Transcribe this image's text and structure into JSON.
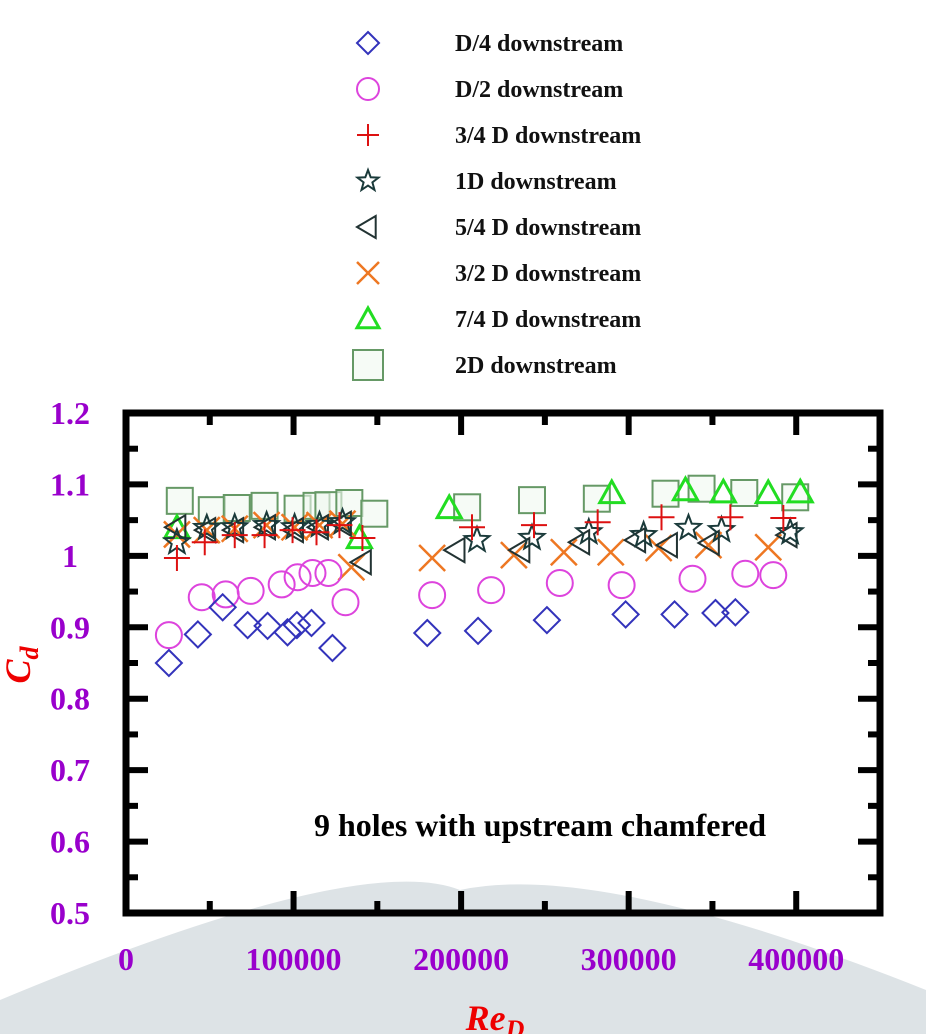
{
  "chart_data": {
    "type": "scatter",
    "title": "",
    "annotation": "9 holes with upstream chamfered",
    "xlabel": "Re",
    "xlabel_sub": "D",
    "ylabel": "C",
    "ylabel_sub": "d",
    "xlim": [
      0,
      450000
    ],
    "ylim": [
      0.5,
      1.2
    ],
    "xticks": [
      0,
      100000,
      200000,
      300000,
      400000
    ],
    "xtick_labels": [
      "0",
      "100000",
      "200000",
      "300000",
      "400000"
    ],
    "yticks": [
      0.5,
      0.6,
      0.7,
      0.8,
      0.9,
      1.0,
      1.1,
      1.2
    ],
    "ytick_labels": [
      "0.5",
      "0.6",
      "0.7",
      "0.8",
      "0.9",
      "1",
      "1.1",
      "1.2"
    ],
    "grid": false,
    "legend_position": "top (above plot)",
    "tick_label_color": "#9900cc",
    "axis_title_color": "#ee0000",
    "series": [
      {
        "name": "D/4 downstream",
        "marker": "diamond",
        "color": "#3333bb",
        "x": [
          25600,
          42900,
          57700,
          72600,
          84500,
          96400,
          102000,
          110700,
          123200,
          179800,
          210100,
          251200,
          298200,
          327400,
          351800,
          363700
        ],
        "y": [
          0.85,
          0.89,
          0.928,
          0.903,
          0.902,
          0.893,
          0.903,
          0.906,
          0.871,
          0.892,
          0.895,
          0.91,
          0.918,
          0.918,
          0.92,
          0.921
        ]
      },
      {
        "name": "D/2 downstream",
        "marker": "circle",
        "color": "#dd44dd",
        "x": [
          25600,
          45200,
          59500,
          74400,
          92900,
          102400,
          111300,
          120800,
          131000,
          182700,
          217900,
          258900,
          295800,
          338100,
          369600,
          386300
        ],
        "y": [
          0.889,
          0.942,
          0.946,
          0.951,
          0.96,
          0.97,
          0.976,
          0.976,
          0.935,
          0.945,
          0.952,
          0.962,
          0.959,
          0.968,
          0.975,
          0.973
        ]
      },
      {
        "name": "3/4 D downstream",
        "marker": "plus",
        "color": "#dd1111",
        "x": [
          30400,
          47000,
          64900,
          82700,
          99400,
          113700,
          127400,
          141100,
          206500,
          243500,
          281500,
          319600,
          360700,
          392300
        ],
        "y": [
          0.997,
          1.019,
          1.029,
          1.029,
          1.036,
          1.033,
          1.043,
          1.025,
          1.04,
          1.043,
          1.047,
          1.054,
          1.054,
          1.053
        ]
      },
      {
        "name": "1D downstream",
        "marker": "star",
        "color": "#1a3a3a",
        "x": [
          30400,
          48200,
          64900,
          83900,
          100600,
          115500,
          129200,
          209500,
          242300,
          276200,
          308900,
          335700,
          355400,
          396400
        ],
        "y": [
          1.019,
          1.039,
          1.04,
          1.043,
          1.04,
          1.043,
          1.047,
          1.022,
          1.025,
          1.033,
          1.029,
          1.039,
          1.036,
          1.033
        ]
      },
      {
        "name": "5/4 D downstream",
        "marker": "triangle-left",
        "color": "#223333",
        "x": [
          30400,
          48200,
          64900,
          83900,
          100600,
          115500,
          129200,
          141100,
          197000,
          235700,
          271400,
          304800,
          323800,
          348800,
          395200
        ],
        "y": [
          1.04,
          1.036,
          1.036,
          1.04,
          1.036,
          1.04,
          1.045,
          0.991,
          1.008,
          1.008,
          1.019,
          1.022,
          1.015,
          1.018,
          1.029
        ]
      },
      {
        "name": "3/2 D downstream",
        "marker": "cross",
        "color": "#ee7722",
        "x": [
          30400,
          48200,
          64900,
          83900,
          100600,
          115500,
          129200,
          134500,
          182700,
          231500,
          261300,
          289300,
          317900,
          347600,
          383300
        ],
        "y": [
          1.03,
          1.036,
          1.038,
          1.043,
          1.04,
          1.043,
          1.045,
          0.984,
          0.997,
          1.001,
          1.005,
          1.005,
          1.011,
          1.015,
          1.012
        ]
      },
      {
        "name": "7/4 D downstream",
        "marker": "triangle-up",
        "color": "#22dd22",
        "x": [
          30400,
          139300,
          192900,
          289900,
          333900,
          356500,
          383300,
          402400
        ],
        "y": [
          1.039,
          1.025,
          1.067,
          1.088,
          1.092,
          1.089,
          1.088,
          1.089
        ]
      },
      {
        "name": "2D downstream",
        "marker": "square",
        "color": "#669966",
        "x": [
          32100,
          51200,
          66100,
          82700,
          102400,
          113700,
          120800,
          133300,
          148200,
          203600,
          242300,
          281000,
          322000,
          343500,
          369000,
          399400
        ],
        "y": [
          1.077,
          1.064,
          1.067,
          1.07,
          1.066,
          1.07,
          1.071,
          1.074,
          1.059,
          1.068,
          1.078,
          1.08,
          1.087,
          1.094,
          1.088,
          1.082
        ]
      }
    ]
  }
}
